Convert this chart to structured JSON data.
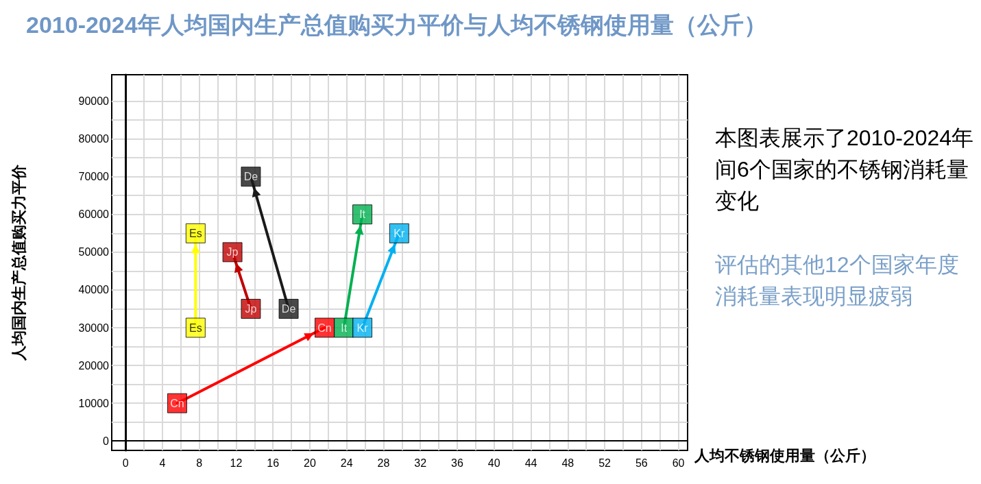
{
  "chart_data": {
    "type": "line",
    "title": "2010-2024年人均国内生产总值购买力平价与人均不锈钢使用量（公斤）",
    "xlabel": "人均不锈钢使用量（公斤）",
    "ylabel": "人均国内生产总值购买力平价",
    "series": [
      {
        "name": "Cn",
        "color": "#ff0000",
        "x": [
          5.6,
          21.6
        ],
        "values": [
          10000,
          30000
        ]
      },
      {
        "name": "Es",
        "color": "#ffff00",
        "x": [
          7.6,
          7.6
        ],
        "values": [
          30000,
          55000
        ]
      },
      {
        "name": "Jp",
        "color": "#c00000",
        "x": [
          13.6,
          11.6
        ],
        "values": [
          35000,
          50000
        ]
      },
      {
        "name": "De",
        "color": "#1a1a1a",
        "x": [
          17.7,
          13.6
        ],
        "values": [
          35000,
          70000
        ]
      },
      {
        "name": "It",
        "color": "#00b050",
        "x": [
          23.7,
          25.7
        ],
        "values": [
          30000,
          60000
        ]
      },
      {
        "name": "Kr",
        "color": "#00b0f0",
        "x": [
          25.7,
          29.7
        ],
        "values": [
          30000,
          55000
        ]
      }
    ],
    "xlim": [
      -1.5,
      61
    ],
    "xticks": [
      0,
      4,
      8,
      12,
      16,
      20,
      24,
      28,
      32,
      36,
      40,
      44,
      48,
      52,
      56,
      60
    ],
    "ylim": [
      -2500,
      97000
    ],
    "yticks": [
      0,
      10000,
      20000,
      30000,
      40000,
      50000,
      60000,
      70000,
      80000,
      90000
    ],
    "grid": true,
    "marker": "square",
    "annotations": [
      "本图表展示了2010-2024年间6个国家的不锈钢消耗量变化",
      "评估的其他12个国家年度消耗量表现明显疲弱"
    ]
  }
}
